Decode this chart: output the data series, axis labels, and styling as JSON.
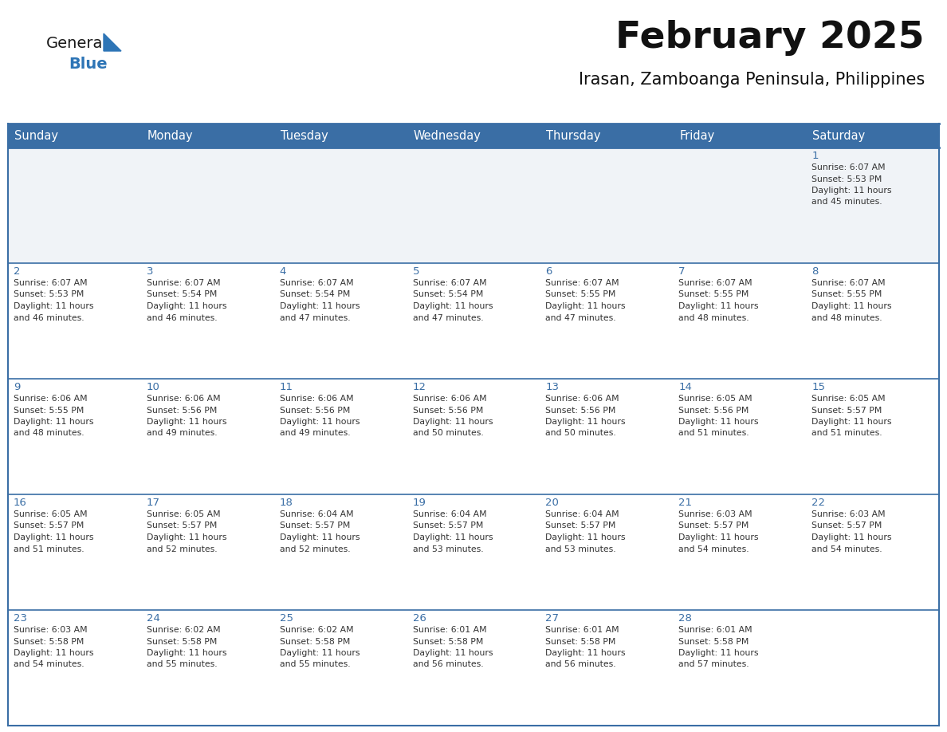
{
  "title": "February 2025",
  "subtitle": "Irasan, Zamboanga Peninsula, Philippines",
  "header_bg_color": "#3a6ea5",
  "header_text_color": "#ffffff",
  "header_font_size": 10.5,
  "day_names": [
    "Sunday",
    "Monday",
    "Tuesday",
    "Wednesday",
    "Thursday",
    "Friday",
    "Saturday"
  ],
  "title_fontsize": 34,
  "subtitle_fontsize": 15,
  "logo_general_color": "#1a1a1a",
  "logo_blue_color": "#2e75b6",
  "calendar_data": [
    {
      "day": 1,
      "col": 6,
      "row": 0,
      "sunrise": "6:07 AM",
      "sunset": "5:53 PM",
      "daylight": "11 hours and 45 minutes."
    },
    {
      "day": 2,
      "col": 0,
      "row": 1,
      "sunrise": "6:07 AM",
      "sunset": "5:53 PM",
      "daylight": "11 hours and 46 minutes."
    },
    {
      "day": 3,
      "col": 1,
      "row": 1,
      "sunrise": "6:07 AM",
      "sunset": "5:54 PM",
      "daylight": "11 hours and 46 minutes."
    },
    {
      "day": 4,
      "col": 2,
      "row": 1,
      "sunrise": "6:07 AM",
      "sunset": "5:54 PM",
      "daylight": "11 hours and 47 minutes."
    },
    {
      "day": 5,
      "col": 3,
      "row": 1,
      "sunrise": "6:07 AM",
      "sunset": "5:54 PM",
      "daylight": "11 hours and 47 minutes."
    },
    {
      "day": 6,
      "col": 4,
      "row": 1,
      "sunrise": "6:07 AM",
      "sunset": "5:55 PM",
      "daylight": "11 hours and 47 minutes."
    },
    {
      "day": 7,
      "col": 5,
      "row": 1,
      "sunrise": "6:07 AM",
      "sunset": "5:55 PM",
      "daylight": "11 hours and 48 minutes."
    },
    {
      "day": 8,
      "col": 6,
      "row": 1,
      "sunrise": "6:07 AM",
      "sunset": "5:55 PM",
      "daylight": "11 hours and 48 minutes."
    },
    {
      "day": 9,
      "col": 0,
      "row": 2,
      "sunrise": "6:06 AM",
      "sunset": "5:55 PM",
      "daylight": "11 hours and 48 minutes."
    },
    {
      "day": 10,
      "col": 1,
      "row": 2,
      "sunrise": "6:06 AM",
      "sunset": "5:56 PM",
      "daylight": "11 hours and 49 minutes."
    },
    {
      "day": 11,
      "col": 2,
      "row": 2,
      "sunrise": "6:06 AM",
      "sunset": "5:56 PM",
      "daylight": "11 hours and 49 minutes."
    },
    {
      "day": 12,
      "col": 3,
      "row": 2,
      "sunrise": "6:06 AM",
      "sunset": "5:56 PM",
      "daylight": "11 hours and 50 minutes."
    },
    {
      "day": 13,
      "col": 4,
      "row": 2,
      "sunrise": "6:06 AM",
      "sunset": "5:56 PM",
      "daylight": "11 hours and 50 minutes."
    },
    {
      "day": 14,
      "col": 5,
      "row": 2,
      "sunrise": "6:05 AM",
      "sunset": "5:56 PM",
      "daylight": "11 hours and 51 minutes."
    },
    {
      "day": 15,
      "col": 6,
      "row": 2,
      "sunrise": "6:05 AM",
      "sunset": "5:57 PM",
      "daylight": "11 hours and 51 minutes."
    },
    {
      "day": 16,
      "col": 0,
      "row": 3,
      "sunrise": "6:05 AM",
      "sunset": "5:57 PM",
      "daylight": "11 hours and 51 minutes."
    },
    {
      "day": 17,
      "col": 1,
      "row": 3,
      "sunrise": "6:05 AM",
      "sunset": "5:57 PM",
      "daylight": "11 hours and 52 minutes."
    },
    {
      "day": 18,
      "col": 2,
      "row": 3,
      "sunrise": "6:04 AM",
      "sunset": "5:57 PM",
      "daylight": "11 hours and 52 minutes."
    },
    {
      "day": 19,
      "col": 3,
      "row": 3,
      "sunrise": "6:04 AM",
      "sunset": "5:57 PM",
      "daylight": "11 hours and 53 minutes."
    },
    {
      "day": 20,
      "col": 4,
      "row": 3,
      "sunrise": "6:04 AM",
      "sunset": "5:57 PM",
      "daylight": "11 hours and 53 minutes."
    },
    {
      "day": 21,
      "col": 5,
      "row": 3,
      "sunrise": "6:03 AM",
      "sunset": "5:57 PM",
      "daylight": "11 hours and 54 minutes."
    },
    {
      "day": 22,
      "col": 6,
      "row": 3,
      "sunrise": "6:03 AM",
      "sunset": "5:57 PM",
      "daylight": "11 hours and 54 minutes."
    },
    {
      "day": 23,
      "col": 0,
      "row": 4,
      "sunrise": "6:03 AM",
      "sunset": "5:58 PM",
      "daylight": "11 hours and 54 minutes."
    },
    {
      "day": 24,
      "col": 1,
      "row": 4,
      "sunrise": "6:02 AM",
      "sunset": "5:58 PM",
      "daylight": "11 hours and 55 minutes."
    },
    {
      "day": 25,
      "col": 2,
      "row": 4,
      "sunrise": "6:02 AM",
      "sunset": "5:58 PM",
      "daylight": "11 hours and 55 minutes."
    },
    {
      "day": 26,
      "col": 3,
      "row": 4,
      "sunrise": "6:01 AM",
      "sunset": "5:58 PM",
      "daylight": "11 hours and 56 minutes."
    },
    {
      "day": 27,
      "col": 4,
      "row": 4,
      "sunrise": "6:01 AM",
      "sunset": "5:58 PM",
      "daylight": "11 hours and 56 minutes."
    },
    {
      "day": 28,
      "col": 5,
      "row": 4,
      "sunrise": "6:01 AM",
      "sunset": "5:58 PM",
      "daylight": "11 hours and 57 minutes."
    }
  ],
  "row0_bg": "#f0f3f7",
  "row_bg": "#ffffff",
  "border_color": "#3a6ea5",
  "day_number_color": "#3a6ea5",
  "day_number_fontsize": 9.5,
  "info_text_color": "#333333",
  "info_fontsize": 7.8
}
